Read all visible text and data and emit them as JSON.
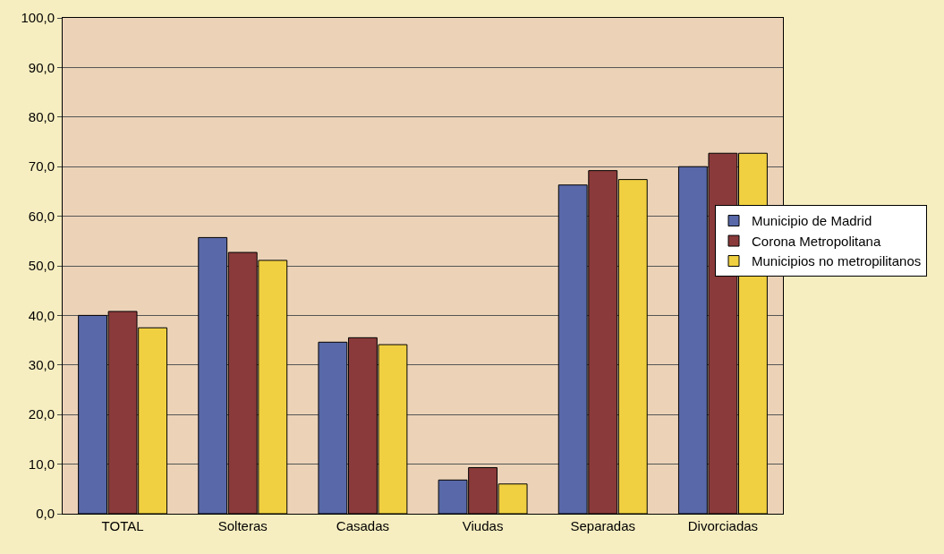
{
  "chart_data": {
    "type": "bar",
    "categories": [
      "TOTAL",
      "Solteras",
      "Casadas",
      "Viudas",
      "Separadas",
      "Divorciadas"
    ],
    "series": [
      {
        "name": "Municipio de Madrid",
        "color": "#5868a8",
        "values": [
          40.0,
          55.7,
          34.6,
          6.8,
          66.3,
          70.0
        ]
      },
      {
        "name": "Corona Metropolitana",
        "color": "#8a3a3a",
        "values": [
          40.8,
          52.7,
          35.5,
          9.3,
          69.2,
          72.7
        ]
      },
      {
        "name": "Municipios no metropilitanos",
        "color": "#f0d040",
        "values": [
          37.5,
          51.1,
          34.1,
          6.0,
          67.4,
          72.7
        ]
      }
    ],
    "ylim": [
      0,
      100
    ],
    "yticks": [
      {
        "value": 0,
        "label": "0,0"
      },
      {
        "value": 10,
        "label": "10,0"
      },
      {
        "value": 20,
        "label": "20,0"
      },
      {
        "value": 30,
        "label": "30,0"
      },
      {
        "value": 40,
        "label": "40,0"
      },
      {
        "value": 50,
        "label": "50,0"
      },
      {
        "value": 60,
        "label": "60,0"
      },
      {
        "value": 70,
        "label": "70,0"
      },
      {
        "value": 80,
        "label": "80,0"
      },
      {
        "value": 90,
        "label": "90,0"
      },
      {
        "value": 100,
        "label": "100,0"
      }
    ],
    "grid": "y",
    "legend": "right"
  }
}
